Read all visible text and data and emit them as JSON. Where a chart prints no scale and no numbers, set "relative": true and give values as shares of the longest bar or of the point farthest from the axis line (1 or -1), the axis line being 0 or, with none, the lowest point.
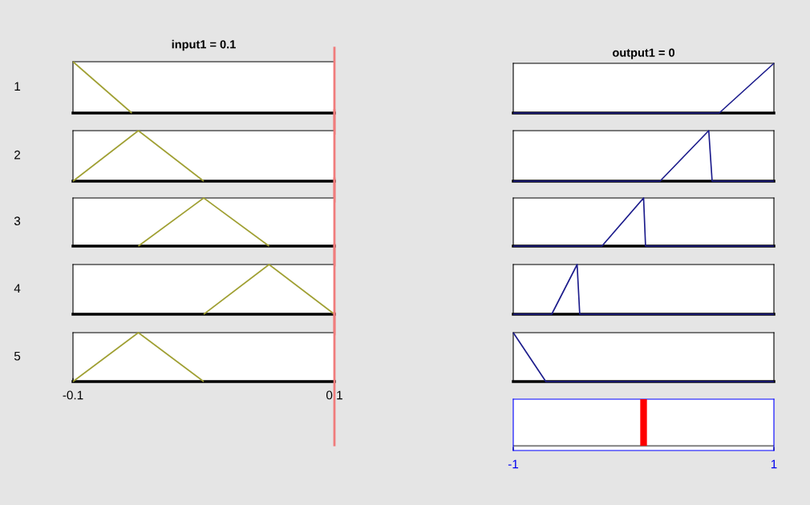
{
  "chart_data": [
    {
      "type": "line",
      "relative": true,
      "title": "input1 = 0.1",
      "ylabel": "1",
      "xlim": [
        -0.1,
        0.1
      ],
      "tick_labels": false,
      "series": [
        {
          "color": "#a0a033",
          "x": [
            -0.1,
            -0.055
          ],
          "values": [
            1,
            0
          ]
        }
      ],
      "ref_lines": [
        {
          "axis": "x",
          "value": 0.1,
          "color": "#f07c7c"
        }
      ]
    },
    {
      "type": "line",
      "relative": true,
      "ylabel": "2",
      "xlim": [
        -0.1,
        0.1
      ],
      "tick_labels": false,
      "series": [
        {
          "color": "#a0a033",
          "x": [
            -0.1,
            -0.05,
            0
          ],
          "values": [
            0,
            1,
            0
          ]
        }
      ],
      "ref_lines": [
        {
          "axis": "x",
          "value": 0.1,
          "color": "#f07c7c"
        }
      ]
    },
    {
      "type": "line",
      "relative": true,
      "ylabel": "3",
      "xlim": [
        -0.1,
        0.1
      ],
      "tick_labels": false,
      "series": [
        {
          "color": "#a0a033",
          "x": [
            -0.05,
            0,
            0.05
          ],
          "values": [
            0,
            1,
            0
          ]
        }
      ],
      "ref_lines": [
        {
          "axis": "x",
          "value": 0.1,
          "color": "#f07c7c"
        }
      ]
    },
    {
      "type": "line",
      "relative": true,
      "ylabel": "4",
      "xlim": [
        -0.1,
        0.1
      ],
      "tick_labels": false,
      "series": [
        {
          "color": "#a0a033",
          "x": [
            0,
            0.05,
            0.1
          ],
          "values": [
            0,
            1,
            0
          ]
        }
      ],
      "ref_lines": [
        {
          "axis": "x",
          "value": 0.1,
          "color": "#f07c7c"
        }
      ]
    },
    {
      "type": "line",
      "relative": true,
      "ylabel": "5",
      "xlim": [
        -0.1,
        0.1
      ],
      "xticks": [
        -0.1,
        0.1
      ],
      "tick_labels": "x",
      "series": [
        {
          "color": "#a0a033",
          "x": [
            -0.1,
            -0.05,
            0
          ],
          "values": [
            0,
            1,
            0
          ]
        }
      ],
      "ref_lines": [
        {
          "axis": "x",
          "value": 0.1,
          "color": "#f07c7c"
        }
      ]
    },
    {
      "type": "line",
      "relative": true,
      "title": "output1 = 0",
      "xlim": [
        -1,
        1
      ],
      "tick_labels": false,
      "series": [
        {
          "color": "#1c1c8c",
          "x": [
            -1,
            0.58,
            1
          ],
          "values": [
            0,
            0,
            1
          ]
        }
      ]
    },
    {
      "type": "line",
      "relative": true,
      "xlim": [
        -1,
        1
      ],
      "tick_labels": false,
      "series": [
        {
          "color": "#1c1c8c",
          "x": [
            -1,
            0.126,
            0.5,
            0.526,
            1
          ],
          "values": [
            0,
            0,
            1,
            0,
            0
          ]
        }
      ]
    },
    {
      "type": "line",
      "relative": true,
      "xlim": [
        -1,
        1
      ],
      "tick_labels": false,
      "series": [
        {
          "color": "#1c1c8c",
          "x": [
            -1,
            -0.32,
            0,
            0.015,
            1
          ],
          "values": [
            0,
            0,
            1,
            0,
            0
          ]
        }
      ]
    },
    {
      "type": "line",
      "relative": true,
      "xlim": [
        -1,
        1
      ],
      "tick_labels": false,
      "series": [
        {
          "color": "#1c1c8c",
          "x": [
            -1,
            -0.705,
            -0.51,
            -0.49,
            1
          ],
          "values": [
            0,
            0,
            1,
            0,
            0
          ]
        }
      ]
    },
    {
      "type": "line",
      "relative": true,
      "xlim": [
        -1,
        1
      ],
      "tick_labels": false,
      "series": [
        {
          "color": "#1c1c8c",
          "x": [
            -1,
            -0.75,
            1
          ],
          "values": [
            1,
            0,
            0
          ]
        }
      ]
    },
    {
      "type": "line",
      "relative": true,
      "xlim": [
        -1,
        1
      ],
      "xticks": [
        -1,
        1
      ],
      "tick_labels": "x",
      "series": [
        {
          "color": "#ff0000",
          "x": [
            0,
            0
          ],
          "values": [
            0,
            1
          ]
        }
      ],
      "ref_lines": [
        {
          "axis": "y",
          "value": 0,
          "color": "#808080"
        }
      ]
    }
  ]
}
